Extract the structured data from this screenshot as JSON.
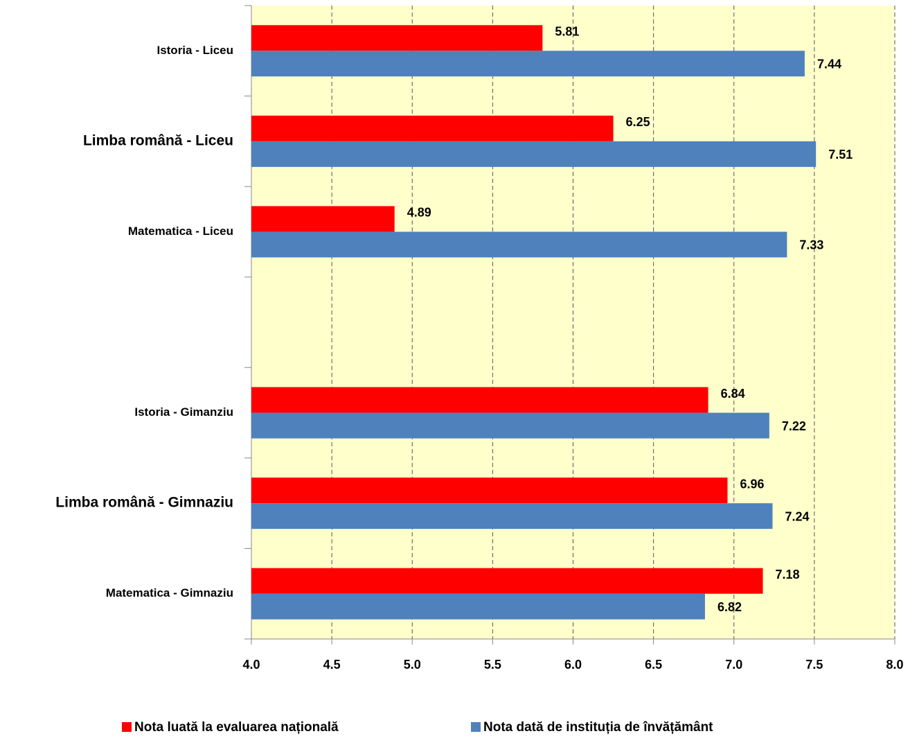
{
  "chart_data": {
    "type": "bar",
    "orientation": "horizontal",
    "categories": [
      "Istoria - Liceu",
      "Limba română - Liceu",
      "Matematica - Liceu",
      null,
      "Istoria - Gimanziu",
      "Limba română - Gimnaziu",
      "Matematica - Gimnaziu"
    ],
    "series": [
      {
        "name": "Nota luată la evaluarea națională",
        "color": "#ff0000",
        "values": [
          5.81,
          6.25,
          4.89,
          null,
          6.84,
          6.96,
          7.18
        ]
      },
      {
        "name": "Nota dată de instituția de învățământ",
        "color": "#4f81bd",
        "values": [
          7.44,
          7.51,
          7.33,
          null,
          7.22,
          7.24,
          6.82
        ]
      }
    ],
    "xlim": [
      4,
      8
    ],
    "xticks": [
      {
        "value": 4,
        "label": "4.0"
      },
      {
        "value": 4.5,
        "label": "4.5"
      },
      {
        "value": 5,
        "label": "5.0"
      },
      {
        "value": 5.5,
        "label": "5.5"
      },
      {
        "value": 6,
        "label": "6.0"
      },
      {
        "value": 6.5,
        "label": "6.5"
      },
      {
        "value": 7,
        "label": "7.0"
      },
      {
        "value": 7.5,
        "label": "7.5"
      },
      {
        "value": 8,
        "label": "8.0"
      }
    ],
    "grid": true,
    "legend": "bottom",
    "background": "#ffffcc"
  }
}
